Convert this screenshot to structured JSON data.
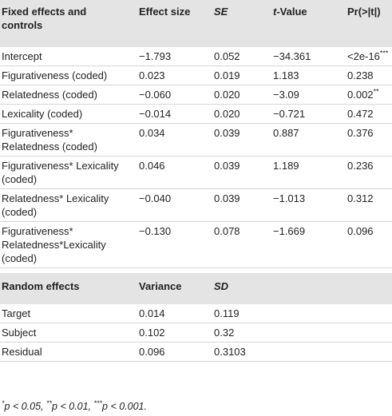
{
  "fixed_effects": {
    "header": [
      "Fixed effects and controls",
      "Effect size",
      "SE",
      {
        "italic": "t",
        "text": "-Value"
      },
      "Pr(>|t|)"
    ],
    "rows": [
      [
        "Intercept",
        "−1.793",
        "0.052",
        "−34.361",
        {
          "text": "<2e-16",
          "sup": "***"
        }
      ],
      [
        "Figurativeness (coded)",
        "0.023",
        "0.019",
        "1.183",
        "0.238"
      ],
      [
        "Relatedness (coded)",
        "−0.060",
        "0.020",
        "−3.09",
        {
          "text": "0.002",
          "sup": "**"
        }
      ],
      [
        "Lexicality (coded)",
        "−0.014",
        "0.020",
        "−0.721",
        "0.472"
      ],
      [
        "Figurativeness* Relatedness (coded)",
        "0.034",
        "0.039",
        "0.887",
        "0.376"
      ],
      [
        "Figurativeness* Lexicality (coded)",
        "0.046",
        "0.039",
        "1.189",
        "0.236"
      ],
      [
        "Relatedness* Lexicality (coded)",
        "−0.040",
        "0.039",
        "−1.013",
        "0.312"
      ],
      [
        "Figurativeness* Relatedness*Lexicality (coded)",
        "−0.130",
        "0.078",
        "−1.669",
        "0.096"
      ]
    ]
  },
  "random_effects": {
    "header": [
      "Random effects",
      "Variance",
      "SD"
    ],
    "rows": [
      [
        "Target",
        "0.014",
        "0.119"
      ],
      [
        "Subject",
        "0.102",
        "0.32"
      ],
      [
        "Residual",
        "0.096",
        "0.3103"
      ]
    ]
  },
  "footnote": [
    {
      "sup": "*",
      "text": "p < 0.05,"
    },
    {
      "sup": "**",
      "text": "p < 0.01,"
    },
    {
      "sup": "***",
      "text": "p < 0.001."
    }
  ]
}
